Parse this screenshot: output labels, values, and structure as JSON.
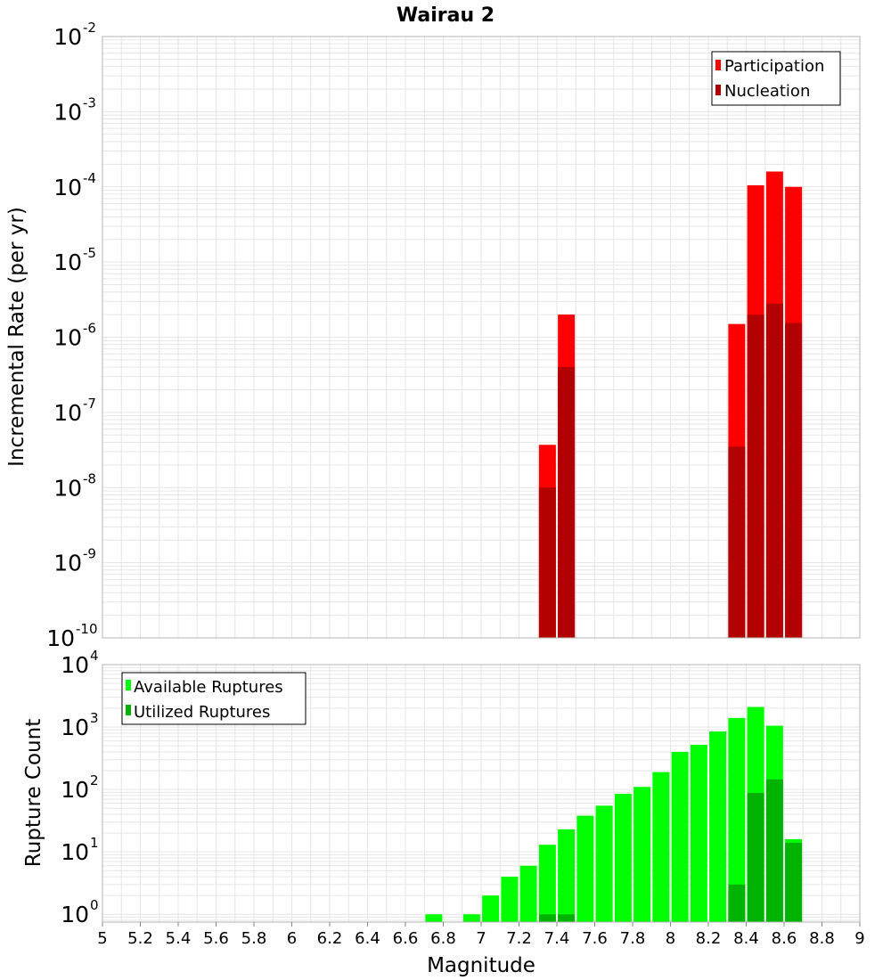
{
  "colors": {
    "participation": "#ff0000",
    "nucleation": "#b30000",
    "available": "#00ff00",
    "utilized": "#00b300",
    "grid": "#e6e6e6",
    "frame": "#b4b4b4"
  },
  "chart_data": [
    {
      "type": "bar",
      "title": "Wairau 2",
      "xlabel": "",
      "ylabel": "Incremental Rate (per yr)",
      "yscale": "log",
      "ylim": [
        1e-10,
        0.01
      ],
      "xlim": [
        5,
        9
      ],
      "y_tick_exponents": [
        "-2",
        "-3",
        "-4",
        "-5",
        "-6",
        "-7",
        "-8",
        "-9",
        "-10"
      ],
      "legend": {
        "position": "top-right",
        "entries": [
          "Participation",
          "Nucleation"
        ]
      },
      "grid": true,
      "x": [
        7.35,
        7.45,
        8.35,
        8.45,
        8.55,
        8.65
      ],
      "series": [
        {
          "name": "Participation",
          "values": [
            3.7e-08,
            2e-06,
            1.5e-06,
            0.000105,
            0.00016,
            0.0001
          ]
        },
        {
          "name": "Nucleation",
          "values": [
            1e-08,
            4e-07,
            3.5e-08,
            2e-06,
            2.8e-06,
            1.55e-06
          ]
        }
      ]
    },
    {
      "type": "bar",
      "title": "",
      "xlabel": "Magnitude",
      "ylabel": "Rupture Count",
      "yscale": "log",
      "ylim": [
        0.75,
        10000
      ],
      "xlim": [
        5,
        9
      ],
      "y_tick_exponents": [
        "4",
        "3",
        "2",
        "1",
        "0"
      ],
      "legend": {
        "position": "top-left",
        "entries": [
          "Available Ruptures",
          "Utilized Ruptures"
        ]
      },
      "grid": true,
      "x_tick_labels": [
        "5",
        "5.2",
        "5.4",
        "5.6",
        "5.8",
        "6",
        "6.2",
        "6.4",
        "6.6",
        "6.8",
        "7",
        "7.2",
        "7.4",
        "7.6",
        "7.8",
        "8",
        "8.2",
        "8.4",
        "8.6",
        "8.8",
        "9"
      ],
      "x": [
        6.75,
        6.95,
        7.05,
        7.15,
        7.25,
        7.35,
        7.45,
        7.55,
        7.65,
        7.75,
        7.85,
        7.95,
        8.05,
        8.15,
        8.25,
        8.35,
        8.45,
        8.55,
        8.65
      ],
      "series": [
        {
          "name": "Available Ruptures",
          "values": [
            1,
            1,
            2,
            4,
            6,
            13,
            23,
            38,
            55,
            85,
            110,
            190,
            400,
            520,
            850,
            1400,
            2100,
            1050,
            16
          ]
        },
        {
          "name": "Utilized Ruptures",
          "values": [
            0,
            0,
            0,
            0,
            0,
            1,
            1,
            0,
            0,
            0,
            0,
            0,
            0,
            0,
            0,
            3,
            88,
            145,
            14
          ]
        }
      ]
    }
  ]
}
